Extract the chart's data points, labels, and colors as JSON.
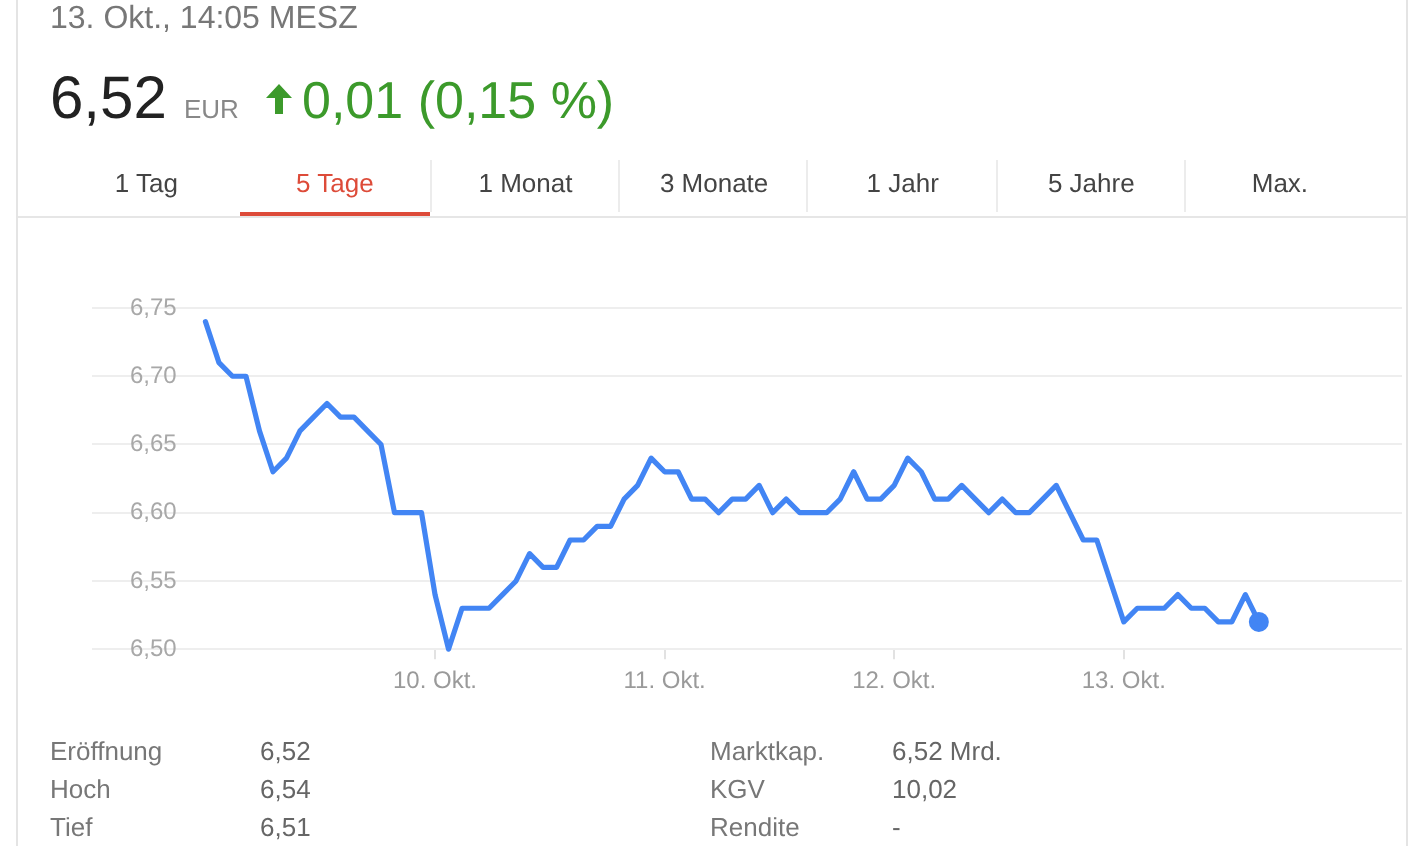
{
  "chart_data": {
    "type": "line",
    "title": "13. Okt., 14:05 MESZ",
    "annotations": [
      "6,52",
      "EUR",
      "0,01 (0,15 %)",
      "1 Tag",
      "5 Tage",
      "1 Monat",
      "3 Monate",
      "1 Jahr",
      "5 Jahre",
      "Max.",
      "Eröffnung",
      "6,52",
      "Hoch",
      "6,54",
      "Tief",
      "6,51",
      "Marktkap.",
      "6,52 Mrd.",
      "KGV",
      "10,02",
      "Rendite",
      "-"
    ],
    "categories": [
      null,
      null,
      null,
      null,
      null,
      null,
      null,
      null,
      null,
      null,
      null,
      null,
      null,
      null,
      null,
      null,
      null,
      "10. Okt.",
      null,
      null,
      null,
      null,
      null,
      null,
      null,
      null,
      null,
      null,
      null,
      null,
      null,
      null,
      null,
      null,
      "11. Okt.",
      null,
      null,
      null,
      null,
      null,
      null,
      null,
      null,
      null,
      null,
      null,
      null,
      null,
      null,
      null,
      null,
      "12. Okt.",
      null,
      null,
      null,
      null,
      null,
      null,
      null,
      null,
      null,
      null,
      null,
      null,
      null,
      null,
      null,
      null,
      "13. Okt.",
      null,
      null,
      null,
      null,
      null,
      null,
      null,
      null,
      null,
      null
    ],
    "series": [
      {
        "color": "#4285f4",
        "values": [
          6.74,
          6.71,
          6.7,
          6.7,
          6.66,
          6.63,
          6.64,
          6.66,
          6.67,
          6.68,
          6.67,
          6.67,
          6.66,
          6.65,
          6.6,
          6.6,
          6.6,
          6.54,
          6.5,
          6.53,
          6.53,
          6.53,
          6.54,
          6.55,
          6.57,
          6.56,
          6.56,
          6.58,
          6.58,
          6.59,
          6.59,
          6.61,
          6.62,
          6.64,
          6.63,
          6.63,
          6.61,
          6.61,
          6.6,
          6.61,
          6.61,
          6.62,
          6.6,
          6.61,
          6.6,
          6.6,
          6.6,
          6.61,
          6.63,
          6.61,
          6.61,
          6.62,
          6.64,
          6.63,
          6.61,
          6.61,
          6.62,
          6.61,
          6.6,
          6.61,
          6.6,
          6.6,
          6.61,
          6.62,
          6.6,
          6.58,
          6.58,
          6.55,
          6.52,
          6.53,
          6.53,
          6.53,
          6.54,
          6.53,
          6.53,
          6.52,
          6.52,
          6.54,
          6.52
        ]
      },
      {
        "type": "scatter",
        "color": "#4285f4",
        "values": [
          null,
          null,
          null,
          null,
          null,
          null,
          null,
          null,
          null,
          null,
          null,
          null,
          null,
          null,
          null,
          null,
          null,
          null,
          null,
          null,
          null,
          null,
          null,
          null,
          null,
          null,
          null,
          null,
          null,
          null,
          null,
          null,
          null,
          null,
          null,
          null,
          null,
          null,
          null,
          null,
          null,
          null,
          null,
          null,
          null,
          null,
          null,
          null,
          null,
          null,
          null,
          null,
          null,
          null,
          null,
          null,
          null,
          null,
          null,
          null,
          null,
          null,
          null,
          null,
          null,
          null,
          null,
          null,
          null,
          null,
          null,
          null,
          null,
          null,
          null,
          null,
          null,
          null,
          6.52
        ]
      }
    ],
    "ylim": [
      6.5,
      6.75
    ],
    "yticks": [
      {
        "value": 6.5,
        "label": "6,50"
      },
      {
        "value": 6.55,
        "label": "6,55"
      },
      {
        "value": 6.6,
        "label": "6,60"
      },
      {
        "value": 6.65,
        "label": "6,65"
      },
      {
        "value": 6.7,
        "label": "6,70"
      },
      {
        "value": 6.75,
        "label": "6,75"
      }
    ],
    "grid": "y"
  }
}
